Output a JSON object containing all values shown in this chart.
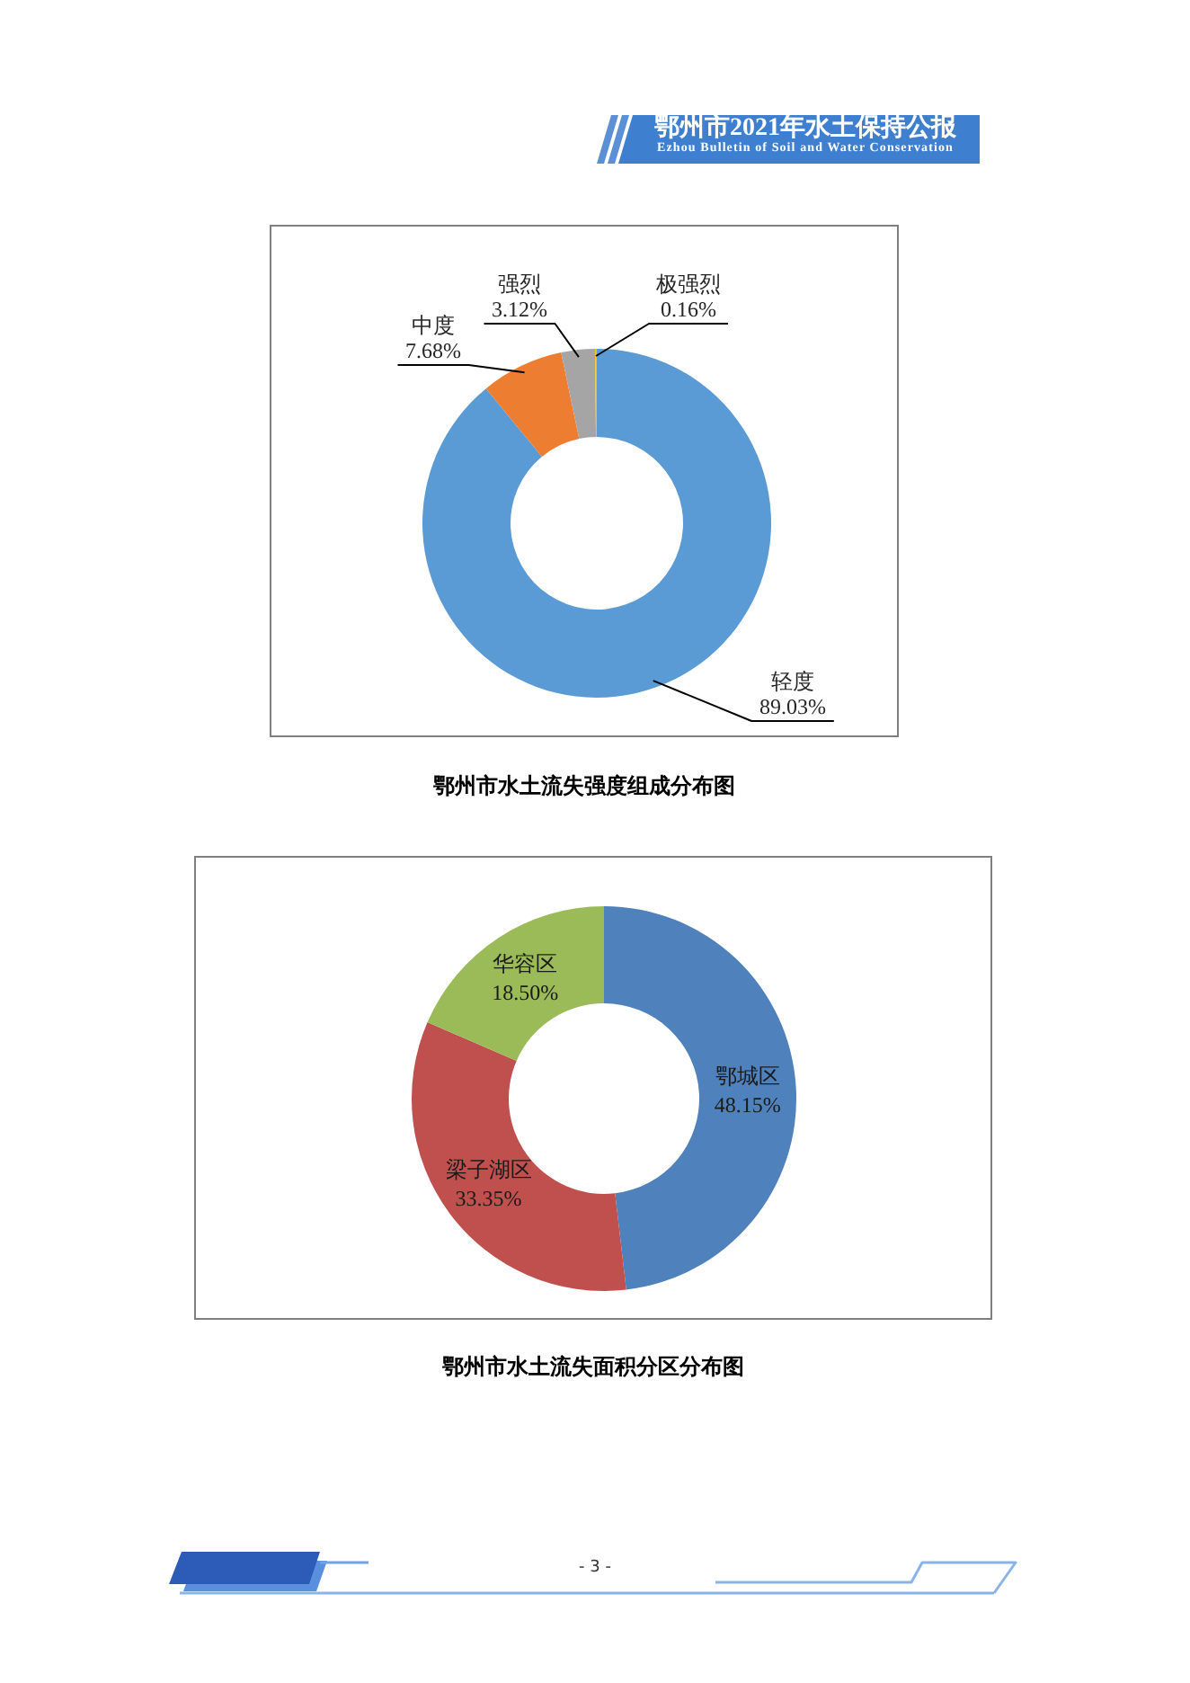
{
  "chart_data": [
    {
      "type": "donut",
      "title": "鄂州市水土流失强度组成分布图",
      "categories": [
        "轻度",
        "中度",
        "强烈",
        "极强烈"
      ],
      "values": [
        89.03,
        7.68,
        3.12,
        0.16
      ],
      "colors": [
        "#5b9bd5",
        "#ed7d31",
        "#a5a5a5",
        "#ffc000"
      ],
      "value_labels": [
        "89.03%",
        "7.68%",
        "3.12%",
        "0.16%"
      ],
      "annotations": [
        "鄂州市2021年水土保持公报",
        "Ezhou Bulletin of Soil and Water Conservation"
      ]
    },
    {
      "type": "donut",
      "title": "鄂州市水土流失面积分区分布图",
      "categories": [
        "鄂城区",
        "梁子湖区",
        "华容区"
      ],
      "values": [
        48.15,
        33.35,
        18.5
      ],
      "colors": [
        "#4f81bd",
        "#c0504d",
        "#9bbb59"
      ],
      "value_labels": [
        "48.15%",
        "33.35%",
        "18.50%"
      ],
      "annotations": [
        "- 3 -"
      ]
    }
  ]
}
